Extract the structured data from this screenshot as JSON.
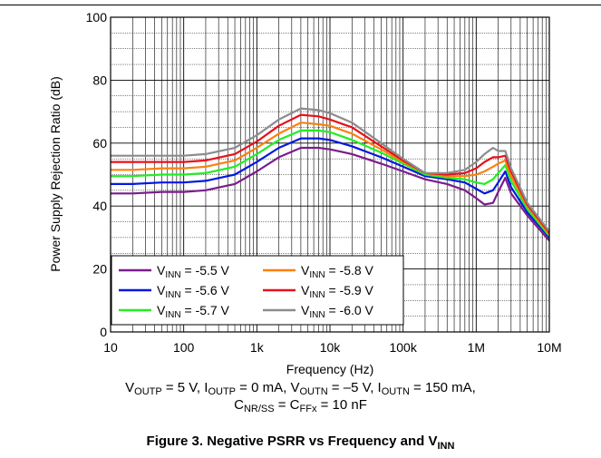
{
  "chart_data": {
    "type": "line",
    "title": "",
    "xlabel": "Frequency (Hz)",
    "ylabel": "Power Supply Rejection Ratio (dB)",
    "xscale": "log",
    "xlim": [
      10,
      10000000
    ],
    "ylim": [
      0,
      100
    ],
    "x_ticks": [
      10,
      100,
      1000,
      10000,
      100000,
      1000000,
      10000000
    ],
    "x_tick_labels": [
      "10",
      "100",
      "1k",
      "10k",
      "100k",
      "1M",
      "10M"
    ],
    "y_ticks": [
      0,
      20,
      40,
      60,
      80,
      100
    ],
    "y_tick_labels": [
      "0",
      "20",
      "40",
      "60",
      "80",
      "100"
    ],
    "grid": true,
    "legend_position": "bottom-left",
    "series": [
      {
        "name": "V_INN = -5.5 V",
        "legend_base": "V",
        "legend_sub": "INN",
        "legend_rest": " = -5.5 V",
        "color": "#7b1c8e",
        "x": [
          10,
          20,
          50,
          100,
          200,
          500,
          1000,
          2000,
          4000,
          7000,
          10000,
          20000,
          50000,
          100000,
          200000,
          400000,
          700000,
          1000000,
          1300000,
          1700000,
          2000000,
          2500000,
          3000000,
          5000000,
          10000000
        ],
        "y": [
          44,
          44,
          44.5,
          44.5,
          45,
          47,
          51,
          55.5,
          58.5,
          58.5,
          58,
          56.5,
          53.5,
          51,
          48.5,
          47,
          45,
          42.5,
          40.5,
          41,
          44.5,
          49,
          44,
          37,
          29
        ]
      },
      {
        "name": "V_INN = -5.6 V",
        "legend_base": "V",
        "legend_sub": "INN",
        "legend_rest": " = -5.6 V",
        "color": "#0018e0",
        "x": [
          10,
          20,
          50,
          100,
          200,
          500,
          1000,
          2000,
          4000,
          7000,
          10000,
          20000,
          50000,
          100000,
          200000,
          400000,
          700000,
          1000000,
          1300000,
          1700000,
          2000000,
          2500000,
          3000000,
          5000000,
          10000000
        ],
        "y": [
          47,
          47,
          47.5,
          47.5,
          48,
          50,
          54,
          58.5,
          61.5,
          61.5,
          61,
          59,
          55.5,
          52.5,
          49.5,
          48.5,
          47.5,
          45.5,
          44,
          45,
          47.5,
          51,
          46,
          38,
          30
        ]
      },
      {
        "name": "V_INN = -5.7 V",
        "legend_base": "V",
        "legend_sub": "INN",
        "legend_rest": " = -5.7 V",
        "color": "#22ee22",
        "x": [
          10,
          20,
          50,
          100,
          200,
          500,
          1000,
          2000,
          4000,
          7000,
          10000,
          20000,
          50000,
          100000,
          200000,
          400000,
          700000,
          1000000,
          1300000,
          1700000,
          2000000,
          2500000,
          3000000,
          5000000,
          10000000
        ],
        "y": [
          49.5,
          49.5,
          50,
          50,
          50.5,
          52.5,
          56.5,
          61,
          64,
          64,
          63.5,
          61,
          57,
          53.5,
          50,
          49,
          48.5,
          47.5,
          47,
          48.5,
          50.5,
          53,
          48,
          39,
          30.5
        ]
      },
      {
        "name": "V_INN = -5.8 V",
        "legend_base": "V",
        "legend_sub": "INN",
        "legend_rest": " = -5.8 V",
        "color": "#ff7f0e",
        "x": [
          10,
          20,
          50,
          100,
          200,
          500,
          1000,
          2000,
          4000,
          7000,
          10000,
          20000,
          50000,
          100000,
          200000,
          400000,
          700000,
          1000000,
          1300000,
          1700000,
          2000000,
          2500000,
          3000000,
          5000000,
          10000000
        ],
        "y": [
          51.5,
          51.5,
          52,
          52,
          52.5,
          54.5,
          58.5,
          63,
          66.5,
          66,
          65.5,
          63,
          58,
          54,
          50.5,
          49.5,
          49.5,
          50,
          51,
          52.5,
          53.5,
          54.5,
          49.5,
          40,
          31
        ]
      },
      {
        "name": "V_INN = -5.9 V",
        "legend_base": "V",
        "legend_sub": "INN",
        "legend_rest": " = -5.9 V",
        "color": "#e8101a",
        "x": [
          10,
          20,
          50,
          100,
          200,
          500,
          1000,
          2000,
          4000,
          7000,
          10000,
          20000,
          50000,
          100000,
          200000,
          400000,
          700000,
          1000000,
          1300000,
          1700000,
          2000000,
          2500000,
          3000000,
          5000000,
          10000000
        ],
        "y": [
          54,
          54,
          54,
          54,
          54.5,
          56.5,
          60.5,
          65.5,
          69,
          68.5,
          67.5,
          65,
          59,
          54.5,
          50.5,
          50,
          50.5,
          52,
          54,
          55.5,
          55.5,
          56,
          51,
          40.5,
          31.5
        ]
      },
      {
        "name": "V_INN = -6.0 V",
        "legend_base": "V",
        "legend_sub": "INN",
        "legend_rest": " = -6.0 V",
        "color": "#8c8c8c",
        "x": [
          10,
          20,
          50,
          100,
          200,
          500,
          1000,
          2000,
          4000,
          7000,
          10000,
          20000,
          50000,
          100000,
          200000,
          400000,
          700000,
          1000000,
          1300000,
          1700000,
          2000000,
          2500000,
          3000000,
          5000000,
          10000000
        ],
        "y": [
          56,
          56,
          56,
          56,
          56.5,
          58.5,
          62.5,
          67.5,
          71,
          70.5,
          69.5,
          66.5,
          60,
          55,
          50.5,
          50.5,
          51.5,
          54,
          56.5,
          58.5,
          57.5,
          57.5,
          52,
          41,
          32
        ]
      }
    ]
  },
  "conditions": {
    "line1": [
      {
        "text": "V",
        "sub": "OUTP"
      },
      {
        "text": " = 5 V, I",
        "sub": "OUTP"
      },
      {
        "text": " = 0 mA, V",
        "sub": "OUTN"
      },
      {
        "text": " = –5 V, I",
        "sub": "OUTN"
      },
      {
        "text": " = 150 mA,",
        "sub": ""
      }
    ],
    "line2": [
      {
        "text": "C",
        "sub": "NR/SS"
      },
      {
        "text": " = C",
        "sub": "FFx"
      },
      {
        "text": " = 10 nF",
        "sub": ""
      }
    ]
  },
  "caption": {
    "text": "Figure 3. Negative PSRR vs Frequency and V",
    "sub": "INN"
  }
}
